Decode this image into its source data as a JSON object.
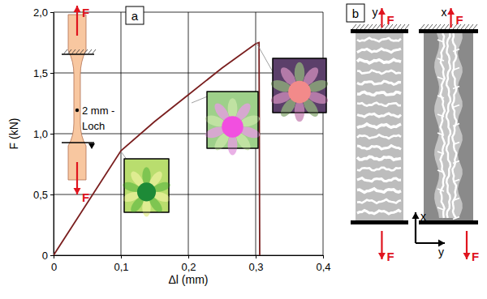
{
  "chart_data": {
    "type": "line",
    "panel_label": "a",
    "x_label": "Δl (mm)",
    "y_label": "F (kN)",
    "xlim": [
      0,
      0.4
    ],
    "ylim": [
      0,
      2
    ],
    "xticks": [
      0,
      {
        "value": 0.1,
        "label": "0,1"
      },
      {
        "value": 0.2,
        "label": "0,2"
      },
      {
        "value": 0.3,
        "label": "0,3"
      },
      {
        "value": 0.4,
        "label": "0,4"
      }
    ],
    "yticks": [
      0,
      {
        "value": 0.5,
        "label": "0,5"
      },
      {
        "value": 1,
        "label": "1,0"
      },
      {
        "value": 1.5,
        "label": "1,5"
      },
      {
        "value": 2,
        "label": "2,0"
      }
    ],
    "grid": true,
    "x": [
      0,
      0.05,
      0.1,
      0.15,
      0.2,
      0.25,
      0.28,
      0.3,
      0.305,
      0.306
    ],
    "series": [
      {
        "color": "#7a1f1f",
        "values": [
          0,
          0.43,
          0.86,
          1.1,
          1.32,
          1.54,
          1.66,
          1.74,
          1.75,
          0
        ]
      }
    ],
    "annotations": [
      "F",
      "F",
      "2 mm -",
      "Loch"
    ]
  },
  "panel_b": {
    "label": "b",
    "specimens": [
      {
        "direction": "y",
        "force_labels": [
          "F",
          "F"
        ]
      },
      {
        "direction": "x",
        "force_labels": [
          "F",
          "F"
        ]
      }
    ],
    "axes": [
      "x",
      "y"
    ]
  }
}
